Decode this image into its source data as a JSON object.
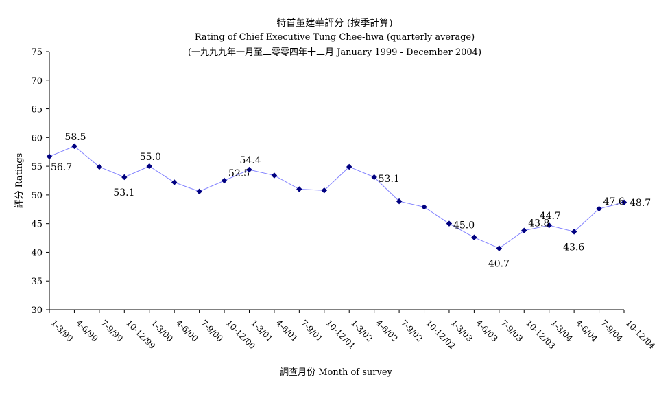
{
  "chart_data": {
    "type": "line",
    "title": "特首董建華評分 (按季計算)",
    "subtitle": "Rating of Chief Executive Tung Chee-hwa  (quarterly average)",
    "subtitle2": "(一九九九年一月至二零零四年十二月 January 1999 - December 2004)",
    "xlabel": "調查月份 Month of survey",
    "ylabel": "評分 Ratings",
    "ylim": [
      30,
      75
    ],
    "yticks": [
      "30",
      "35",
      "40",
      "45",
      "50",
      "55",
      "60",
      "65",
      "70",
      "75"
    ],
    "grid": false,
    "legend": "none",
    "categories": [
      "1-3/99",
      "4-6/99",
      "7-9/99",
      "10-12/99",
      "1-3/00",
      "4-6/00",
      "7-9/00",
      "10-12/00",
      "1-3/01",
      "4-6/01",
      "7-9/01",
      "10-12/01",
      "1-3/02",
      "4-6/02",
      "7-9/02",
      "10-12/02",
      "1-3/03",
      "4-6/03",
      "7-9/03",
      "10-12/03",
      "1-3/04",
      "4-6/04",
      "7-9/04",
      "10-12/04"
    ],
    "series": [
      {
        "values": [
          56.7,
          58.5,
          54.9,
          53.1,
          55.0,
          52.2,
          50.6,
          52.5,
          54.4,
          53.4,
          51.0,
          50.8,
          54.9,
          53.1,
          48.9,
          47.9,
          45.0,
          42.6,
          40.7,
          43.8,
          44.7,
          43.6,
          47.6,
          48.7
        ],
        "labels": [
          "56.7",
          "58.5",
          "",
          "53.1",
          "55.0",
          "",
          "",
          "52.5",
          "54.4",
          "",
          "",
          "",
          "",
          "53.1",
          "",
          "",
          "45.0",
          "",
          "40.7",
          "43.8",
          "44.7",
          "43.6",
          "47.6",
          "48.7"
        ]
      }
    ],
    "colors": {
      "line": "#8080ff",
      "marker": "#000080",
      "axis": "#000000"
    }
  }
}
